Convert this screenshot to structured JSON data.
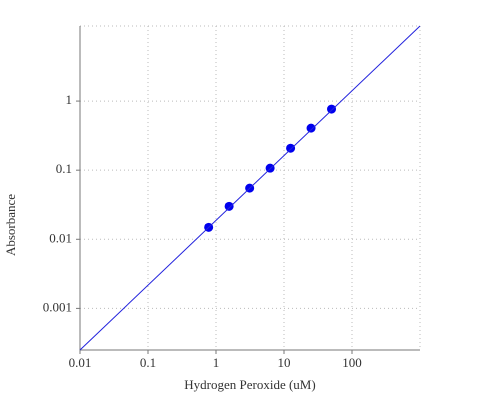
{
  "chart_data": {
    "type": "scatter",
    "x_label": "Hydrogen Peroxide (uM)",
    "y_label": "Absorbance",
    "log_x": true,
    "log_y": true,
    "grid": true,
    "xlim": [
      0.01,
      1000
    ],
    "ylim": [
      0.00025,
      12.2
    ],
    "xticks": [
      0.01,
      0.1,
      1,
      10,
      100
    ],
    "yticks": [
      0.001,
      0.01,
      0.1,
      1
    ],
    "series": [
      {
        "mode": "markers",
        "color": "#0000ee",
        "x": [
          0.78,
          1.56,
          3.125,
          6.25,
          12.5,
          25,
          50
        ],
        "values": [
          0.0149,
          0.03,
          0.055,
          0.107,
          0.208,
          0.406,
          0.766
        ]
      },
      {
        "mode": "line",
        "color": "#2222dd",
        "x": [
          0.01,
          1000
        ],
        "values": [
          0.00025,
          12.2
        ]
      }
    ]
  }
}
